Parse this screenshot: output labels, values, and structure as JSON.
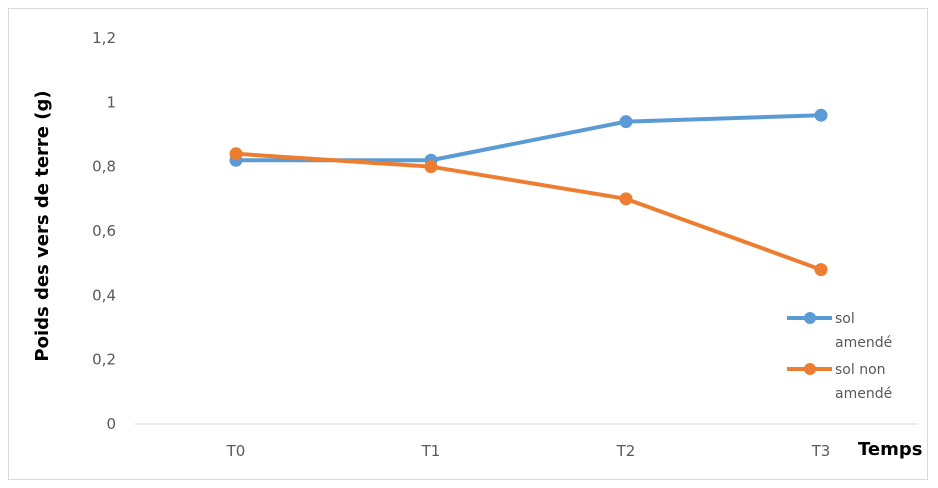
{
  "chart_data": {
    "type": "line",
    "categories": [
      "T0",
      "T1",
      "T2",
      "T3"
    ],
    "series": [
      {
        "name": "sol amendé",
        "legend_lines": [
          "sol",
          "amendé"
        ],
        "color": "#5b9bd5",
        "values": [
          0.82,
          0.82,
          0.94,
          0.96
        ]
      },
      {
        "name": "sol non amendé",
        "legend_lines": [
          "sol non",
          "amendé"
        ],
        "color": "#ed7d31",
        "values": [
          0.84,
          0.8,
          0.7,
          0.48
        ]
      }
    ],
    "ylabel": "Poids des vers de terre (g)",
    "xlabel": "Temps",
    "ylim": [
      0,
      1.2
    ],
    "yticks": [
      0,
      0.2,
      0.4,
      0.6,
      0.8,
      1,
      1.2
    ],
    "ytick_labels": [
      "0",
      "0,2",
      "0,4",
      "0,6",
      "0,8",
      "1",
      "1,2"
    ],
    "grid": false,
    "legend_position": "right"
  }
}
